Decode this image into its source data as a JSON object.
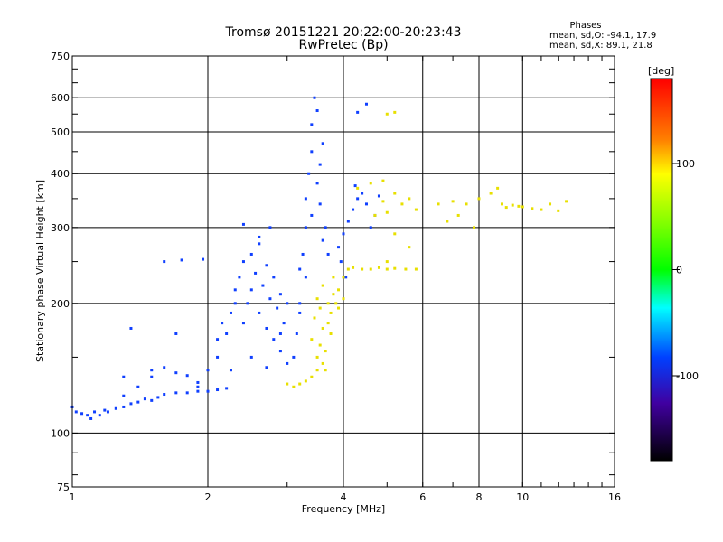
{
  "chart_data": {
    "type": "scatter",
    "title": "Tromsø 20151221 20:22:00-20:23:43",
    "subtitle": "RwPretec (Bp)",
    "xlabel": "Frequency [MHz]",
    "ylabel": "Stationary phase Virtual Height [km]",
    "xscale": "log",
    "yscale": "log",
    "xlim": [
      1,
      16
    ],
    "ylim": [
      75,
      750
    ],
    "x_ticks": [
      1,
      2,
      4,
      6,
      8,
      10,
      16
    ],
    "x_tick_labels": [
      "1",
      "2",
      "4",
      "6",
      "8",
      "10",
      "16"
    ],
    "y_ticks": [
      75,
      100,
      200,
      300,
      400,
      500,
      600,
      750
    ],
    "y_tick_labels": [
      "75",
      "100",
      "200",
      "300",
      "400",
      "500",
      "600",
      "750"
    ],
    "grid": true,
    "phases_info": {
      "title": "Phases",
      "line_o": "mean, sd,O: -94.1, 17.9",
      "line_x": "mean, sd,X:  89.1, 21.8"
    },
    "colorbar": {
      "label": "[deg]",
      "range": [
        -180,
        180
      ],
      "ticks": [
        100,
        0,
        -100
      ],
      "tick_labels": [
        "100",
        "0",
        "-100"
      ]
    },
    "series": [
      {
        "name": "O",
        "color": "#1040ff",
        "points": [
          [
            1.0,
            115
          ],
          [
            1.02,
            112
          ],
          [
            1.05,
            111
          ],
          [
            1.08,
            110
          ],
          [
            1.1,
            108
          ],
          [
            1.12,
            112
          ],
          [
            1.15,
            110
          ],
          [
            1.18,
            113
          ],
          [
            1.2,
            112
          ],
          [
            1.25,
            114
          ],
          [
            1.3,
            115
          ],
          [
            1.35,
            117
          ],
          [
            1.4,
            118
          ],
          [
            1.45,
            120
          ],
          [
            1.5,
            119
          ],
          [
            1.55,
            121
          ],
          [
            1.6,
            123
          ],
          [
            1.7,
            124
          ],
          [
            1.8,
            124
          ],
          [
            1.9,
            125
          ],
          [
            2.0,
            125
          ],
          [
            2.1,
            126
          ],
          [
            2.2,
            127
          ],
          [
            1.3,
            122
          ],
          [
            1.4,
            128
          ],
          [
            1.5,
            135
          ],
          [
            1.6,
            142
          ],
          [
            1.7,
            138
          ],
          [
            1.8,
            136
          ],
          [
            1.9,
            131
          ],
          [
            2.0,
            140
          ],
          [
            2.1,
            150
          ],
          [
            2.1,
            165
          ],
          [
            2.15,
            180
          ],
          [
            2.2,
            170
          ],
          [
            2.25,
            190
          ],
          [
            2.3,
            200
          ],
          [
            2.3,
            215
          ],
          [
            2.35,
            230
          ],
          [
            2.4,
            180
          ],
          [
            2.4,
            250
          ],
          [
            2.45,
            200
          ],
          [
            2.5,
            215
          ],
          [
            2.5,
            260
          ],
          [
            2.55,
            235
          ],
          [
            2.6,
            190
          ],
          [
            2.6,
            275
          ],
          [
            2.65,
            220
          ],
          [
            2.7,
            175
          ],
          [
            2.7,
            245
          ],
          [
            2.75,
            205
          ],
          [
            2.8,
            165
          ],
          [
            2.8,
            230
          ],
          [
            2.85,
            195
          ],
          [
            2.9,
            155
          ],
          [
            2.9,
            210
          ],
          [
            2.95,
            180
          ],
          [
            3.0,
            200
          ],
          [
            3.0,
            145
          ],
          [
            2.25,
            140
          ],
          [
            2.5,
            150
          ],
          [
            2.7,
            142
          ],
          [
            2.9,
            170
          ],
          [
            2.6,
            285
          ],
          [
            2.75,
            300
          ],
          [
            3.1,
            150
          ],
          [
            3.15,
            170
          ],
          [
            3.2,
            200
          ],
          [
            3.2,
            240
          ],
          [
            3.25,
            260
          ],
          [
            3.3,
            300
          ],
          [
            3.3,
            350
          ],
          [
            3.35,
            400
          ],
          [
            3.4,
            450
          ],
          [
            3.4,
            520
          ],
          [
            3.45,
            600
          ],
          [
            3.5,
            560
          ],
          [
            3.5,
            380
          ],
          [
            3.55,
            420
          ],
          [
            3.6,
            470
          ],
          [
            3.6,
            280
          ],
          [
            3.4,
            320
          ],
          [
            3.3,
            230
          ],
          [
            3.2,
            190
          ],
          [
            3.55,
            340
          ],
          [
            3.65,
            300
          ],
          [
            3.7,
            260
          ],
          [
            3.9,
            270
          ],
          [
            4.0,
            290
          ],
          [
            4.1,
            310
          ],
          [
            4.2,
            330
          ],
          [
            4.3,
            350
          ],
          [
            4.4,
            360
          ],
          [
            4.5,
            340
          ],
          [
            4.6,
            300
          ],
          [
            4.7,
            320
          ],
          [
            4.8,
            355
          ],
          [
            3.95,
            250
          ],
          [
            4.05,
            230
          ],
          [
            4.25,
            375
          ],
          [
            4.5,
            580
          ],
          [
            4.3,
            555
          ],
          [
            1.3,
            135
          ],
          [
            1.5,
            140
          ],
          [
            1.7,
            170
          ],
          [
            1.9,
            128
          ],
          [
            1.6,
            250
          ],
          [
            1.75,
            252
          ],
          [
            1.95,
            253
          ],
          [
            2.4,
            305
          ],
          [
            1.35,
            175
          ]
        ]
      },
      {
        "name": "X",
        "color": "#e8e000",
        "points": [
          [
            3.0,
            130
          ],
          [
            3.1,
            128
          ],
          [
            3.2,
            130
          ],
          [
            3.3,
            132
          ],
          [
            3.4,
            135
          ],
          [
            3.5,
            140
          ],
          [
            3.5,
            150
          ],
          [
            3.55,
            160
          ],
          [
            3.6,
            175
          ],
          [
            3.6,
            145
          ],
          [
            3.65,
            155
          ],
          [
            3.7,
            180
          ],
          [
            3.7,
            200
          ],
          [
            3.75,
            190
          ],
          [
            3.8,
            210
          ],
          [
            3.85,
            200
          ],
          [
            3.9,
            215
          ],
          [
            4.0,
            230
          ],
          [
            4.1,
            240
          ],
          [
            4.2,
            242
          ],
          [
            4.4,
            240
          ],
          [
            4.6,
            240
          ],
          [
            4.8,
            242
          ],
          [
            5.0,
            240
          ],
          [
            5.2,
            241
          ],
          [
            5.5,
            240
          ],
          [
            5.8,
            240
          ],
          [
            3.4,
            165
          ],
          [
            3.45,
            185
          ],
          [
            3.5,
            205
          ],
          [
            3.55,
            195
          ],
          [
            3.65,
            140
          ],
          [
            3.75,
            170
          ],
          [
            3.9,
            195
          ],
          [
            4.0,
            205
          ],
          [
            3.6,
            220
          ],
          [
            3.8,
            230
          ],
          [
            4.3,
            370
          ],
          [
            4.6,
            380
          ],
          [
            4.9,
            385
          ],
          [
            5.2,
            360
          ],
          [
            5.6,
            350
          ],
          [
            5.0,
            325
          ],
          [
            5.4,
            340
          ],
          [
            5.8,
            330
          ],
          [
            5.2,
            290
          ],
          [
            5.6,
            270
          ],
          [
            5.0,
            250
          ],
          [
            6.5,
            340
          ],
          [
            7.0,
            345
          ],
          [
            7.5,
            340
          ],
          [
            8.0,
            350
          ],
          [
            8.5,
            360
          ],
          [
            9.0,
            340
          ],
          [
            9.5,
            338
          ],
          [
            10.0,
            335
          ],
          [
            10.5,
            332
          ],
          [
            11.0,
            330
          ],
          [
            12.0,
            328
          ],
          [
            8.8,
            370
          ],
          [
            7.8,
            300
          ],
          [
            7.2,
            320
          ],
          [
            6.8,
            310
          ],
          [
            9.2,
            334
          ],
          [
            9.8,
            336
          ],
          [
            11.5,
            340
          ],
          [
            12.5,
            345
          ],
          [
            5.0,
            550
          ],
          [
            5.2,
            555
          ],
          [
            4.7,
            320
          ],
          [
            4.9,
            345
          ]
        ]
      }
    ]
  }
}
